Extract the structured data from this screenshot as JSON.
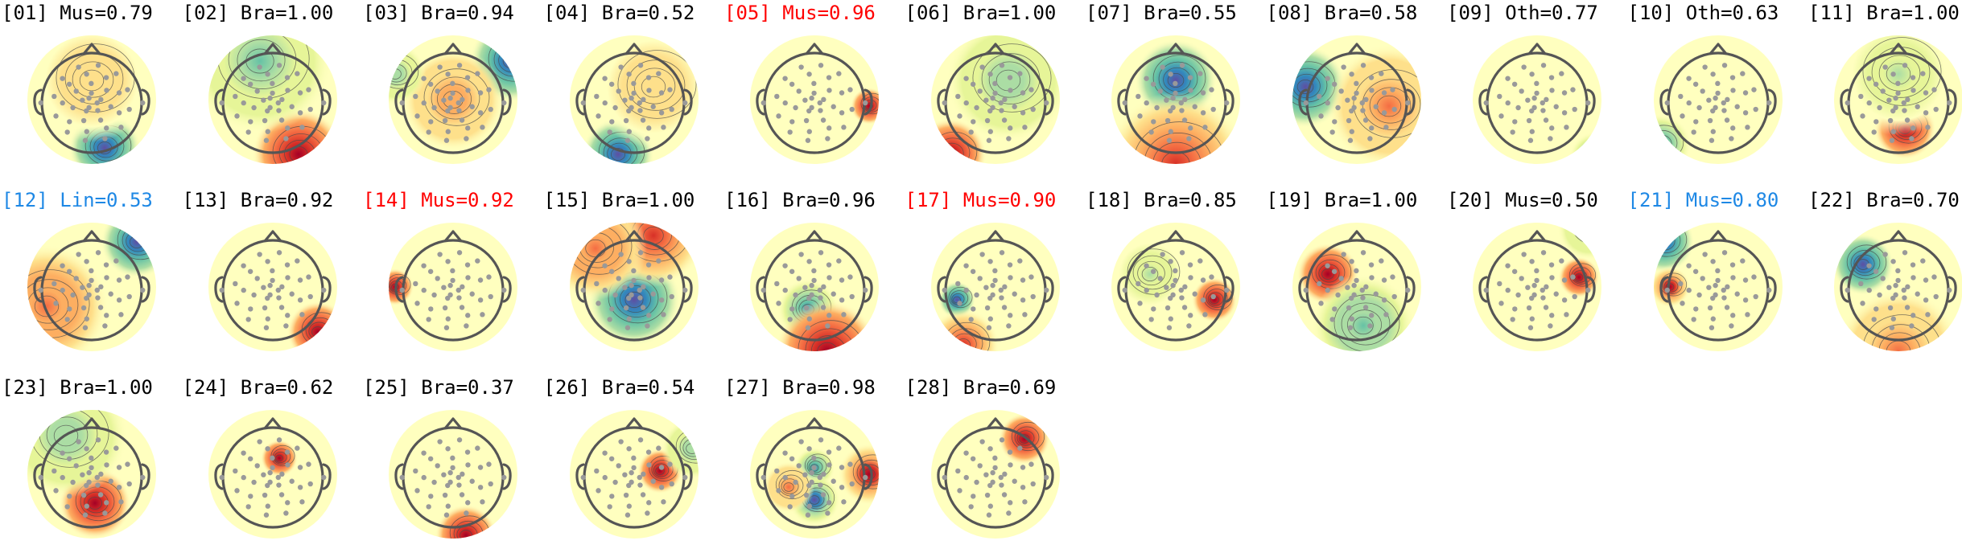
{
  "colors": {
    "default_label": "#000000",
    "flagged_label": "#ff0000",
    "alt_label": "#1e88e5",
    "positive_scale": [
      "#ffffbf",
      "#fee08b",
      "#fdae61",
      "#f46d43",
      "#d73027",
      "#a50026"
    ],
    "negative_scale": [
      "#ffffbf",
      "#e6f598",
      "#abdda4",
      "#66c2a5",
      "#3288bd",
      "#5e4fa2"
    ],
    "head_outline": "#555555",
    "electrode": "#999999"
  },
  "chart_data": {
    "type": "topomap-grid",
    "panels": [
      {
        "label": "[01] Mus=0.79",
        "label_color": "default",
        "blobs": [
          {
            "x": 0.2,
            "y": -0.75,
            "sign": -1,
            "amp": 1.0,
            "w": 0.35
          },
          {
            "x": 0.0,
            "y": 0.3,
            "sign": 1,
            "amp": 0.2,
            "w": 0.6
          }
        ]
      },
      {
        "label": "[02] Bra=1.00",
        "label_color": "default",
        "blobs": [
          {
            "x": 0.4,
            "y": -0.85,
            "sign": 1,
            "amp": 1.0,
            "w": 0.45
          },
          {
            "x": -0.2,
            "y": 0.6,
            "sign": -1,
            "amp": 0.5,
            "w": 0.7
          }
        ]
      },
      {
        "label": "[03] Bra=0.94",
        "label_color": "default",
        "blobs": [
          {
            "x": 0.9,
            "y": 0.6,
            "sign": -1,
            "amp": 1.0,
            "w": 0.4
          },
          {
            "x": 0.0,
            "y": 0.0,
            "sign": 1,
            "amp": 0.45,
            "w": 0.5
          },
          {
            "x": -0.9,
            "y": 0.4,
            "sign": -1,
            "amp": 0.4,
            "w": 0.3
          }
        ]
      },
      {
        "label": "[04] Bra=0.52",
        "label_color": "default",
        "blobs": [
          {
            "x": -0.25,
            "y": -0.85,
            "sign": -1,
            "amp": 1.0,
            "w": 0.35
          },
          {
            "x": 0.3,
            "y": 0.2,
            "sign": 1,
            "amp": 0.25,
            "w": 0.6
          }
        ]
      },
      {
        "label": "[05] Mus=0.96",
        "label_color": "flagged",
        "blobs": [
          {
            "x": 0.85,
            "y": -0.1,
            "sign": 1,
            "amp": 1.0,
            "w": 0.18
          }
        ]
      },
      {
        "label": "[06] Bra=1.00",
        "label_color": "default",
        "blobs": [
          {
            "x": -0.7,
            "y": -0.85,
            "sign": 1,
            "amp": 1.0,
            "w": 0.35
          },
          {
            "x": 0.2,
            "y": 0.3,
            "sign": -1,
            "amp": 0.4,
            "w": 0.6
          }
        ]
      },
      {
        "label": "[07] Bra=0.55",
        "label_color": "default",
        "blobs": [
          {
            "x": 0.0,
            "y": 0.3,
            "sign": -1,
            "amp": 1.0,
            "w": 0.4
          },
          {
            "x": 0.0,
            "y": -1.0,
            "sign": 1,
            "amp": 0.8,
            "w": 0.7
          }
        ]
      },
      {
        "label": "[08] Bra=0.58",
        "label_color": "default",
        "blobs": [
          {
            "x": -0.8,
            "y": 0.2,
            "sign": -1,
            "amp": 1.0,
            "w": 0.4
          },
          {
            "x": 0.5,
            "y": -0.1,
            "sign": 1,
            "amp": 0.5,
            "w": 0.6
          }
        ]
      },
      {
        "label": "[09] Oth=0.77",
        "label_color": "default",
        "blobs": [
          {
            "x": 0.9,
            "y": -0.9,
            "sign": -1,
            "amp": 0.8,
            "w": 0.25
          }
        ]
      },
      {
        "label": "[10] Oth=0.63",
        "label_color": "default",
        "blobs": [
          {
            "x": -0.9,
            "y": -0.7,
            "sign": -1,
            "amp": 0.8,
            "w": 0.3
          }
        ]
      },
      {
        "label": "[11] Bra=1.00",
        "label_color": "default",
        "blobs": [
          {
            "x": 0.1,
            "y": -0.45,
            "sign": 1,
            "amp": 1.0,
            "w": 0.3
          },
          {
            "x": 0.0,
            "y": 0.4,
            "sign": -1,
            "amp": 0.3,
            "w": 0.6
          }
        ]
      },
      {
        "label": "[12] Lin=0.53",
        "label_color": "alt",
        "blobs": [
          {
            "x": 0.7,
            "y": 0.7,
            "sign": -1,
            "amp": 1.0,
            "w": 0.35
          },
          {
            "x": -0.7,
            "y": -0.3,
            "sign": 1,
            "amp": 0.6,
            "w": 0.6
          }
        ]
      },
      {
        "label": "[13] Bra=0.92",
        "label_color": "default",
        "blobs": [
          {
            "x": 0.7,
            "y": -0.7,
            "sign": 1,
            "amp": 1.0,
            "w": 0.3
          }
        ]
      },
      {
        "label": "[14] Mus=0.92",
        "label_color": "flagged",
        "blobs": [
          {
            "x": -0.9,
            "y": 0.0,
            "sign": 1,
            "amp": 1.0,
            "w": 0.18
          }
        ]
      },
      {
        "label": "[15] Bra=1.00",
        "label_color": "default",
        "blobs": [
          {
            "x": 0.0,
            "y": -0.2,
            "sign": -1,
            "amp": 1.0,
            "w": 0.45
          },
          {
            "x": 0.3,
            "y": 0.8,
            "sign": 1,
            "amp": 0.8,
            "w": 0.5
          },
          {
            "x": -0.6,
            "y": 0.6,
            "sign": 1,
            "amp": 0.6,
            "w": 0.5
          }
        ]
      },
      {
        "label": "[16] Bra=0.96",
        "label_color": "default",
        "blobs": [
          {
            "x": -0.1,
            "y": -0.35,
            "sign": -1,
            "amp": 0.8,
            "w": 0.3
          },
          {
            "x": 0.2,
            "y": -1.0,
            "sign": 1,
            "amp": 1.0,
            "w": 0.5
          }
        ]
      },
      {
        "label": "[17] Mus=0.90",
        "label_color": "flagged",
        "blobs": [
          {
            "x": -0.6,
            "y": -0.2,
            "sign": -1,
            "amp": 1.0,
            "w": 0.18
          },
          {
            "x": -0.5,
            "y": -0.9,
            "sign": 1,
            "amp": 0.8,
            "w": 0.35
          }
        ]
      },
      {
        "label": "[18] Bra=0.85",
        "label_color": "default",
        "blobs": [
          {
            "x": 0.6,
            "y": -0.2,
            "sign": 1,
            "amp": 1.0,
            "w": 0.22
          },
          {
            "x": -0.4,
            "y": 0.2,
            "sign": -1,
            "amp": 0.3,
            "w": 0.4
          }
        ]
      },
      {
        "label": "[19] Bra=1.00",
        "label_color": "default",
        "blobs": [
          {
            "x": -0.45,
            "y": 0.2,
            "sign": 1,
            "amp": 1.0,
            "w": 0.3
          },
          {
            "x": 0.1,
            "y": -0.6,
            "sign": -1,
            "amp": 0.6,
            "w": 0.5
          }
        ]
      },
      {
        "label": "[20] Mus=0.50",
        "label_color": "default",
        "blobs": [
          {
            "x": 0.65,
            "y": 0.15,
            "sign": 1,
            "amp": 1.0,
            "w": 0.2
          },
          {
            "x": 0.8,
            "y": 0.9,
            "sign": -1,
            "amp": 0.5,
            "w": 0.3
          }
        ]
      },
      {
        "label": "[21] Mus=0.80",
        "label_color": "alt",
        "blobs": [
          {
            "x": -0.85,
            "y": 0.7,
            "sign": -1,
            "amp": 1.0,
            "w": 0.3
          },
          {
            "x": -0.75,
            "y": 0.0,
            "sign": 1,
            "amp": 0.9,
            "w": 0.2
          }
        ]
      },
      {
        "label": "[22] Bra=0.70",
        "label_color": "default",
        "blobs": [
          {
            "x": -0.55,
            "y": 0.35,
            "sign": -1,
            "amp": 1.0,
            "w": 0.3
          },
          {
            "x": 0.0,
            "y": -1.0,
            "sign": 1,
            "amp": 0.5,
            "w": 0.6
          }
        ]
      },
      {
        "label": "[23] Bra=1.00",
        "label_color": "default",
        "blobs": [
          {
            "x": 0.05,
            "y": -0.45,
            "sign": 1,
            "amp": 1.0,
            "w": 0.35
          },
          {
            "x": -0.4,
            "y": 0.6,
            "sign": -1,
            "amp": 0.4,
            "w": 0.6
          }
        ]
      },
      {
        "label": "[24] Bra=0.62",
        "label_color": "default",
        "blobs": [
          {
            "x": 0.1,
            "y": 0.25,
            "sign": 1,
            "amp": 1.0,
            "w": 0.18
          }
        ]
      },
      {
        "label": "[25] Bra=0.37",
        "label_color": "default",
        "blobs": [
          {
            "x": 0.2,
            "y": -0.95,
            "sign": 1,
            "amp": 1.0,
            "w": 0.3
          }
        ]
      },
      {
        "label": "[26] Bra=0.54",
        "label_color": "default",
        "blobs": [
          {
            "x": 0.4,
            "y": 0.05,
            "sign": 1,
            "amp": 1.0,
            "w": 0.22
          },
          {
            "x": 0.9,
            "y": 0.4,
            "sign": -1,
            "amp": 0.4,
            "w": 0.3
          }
        ]
      },
      {
        "label": "[27] Bra=0.98",
        "label_color": "default",
        "blobs": [
          {
            "x": 0.0,
            "y": 0.1,
            "sign": -1,
            "amp": 0.8,
            "w": 0.2
          },
          {
            "x": 0.0,
            "y": -0.4,
            "sign": -1,
            "amp": 0.9,
            "w": 0.25
          },
          {
            "x": -0.4,
            "y": -0.2,
            "sign": 1,
            "amp": 0.5,
            "w": 0.25
          },
          {
            "x": 0.85,
            "y": 0.0,
            "sign": 1,
            "amp": 0.9,
            "w": 0.3
          }
        ]
      },
      {
        "label": "[28] Bra=0.69",
        "label_color": "default",
        "blobs": [
          {
            "x": 0.45,
            "y": 0.55,
            "sign": 1,
            "amp": 1.0,
            "w": 0.25
          }
        ]
      }
    ]
  }
}
